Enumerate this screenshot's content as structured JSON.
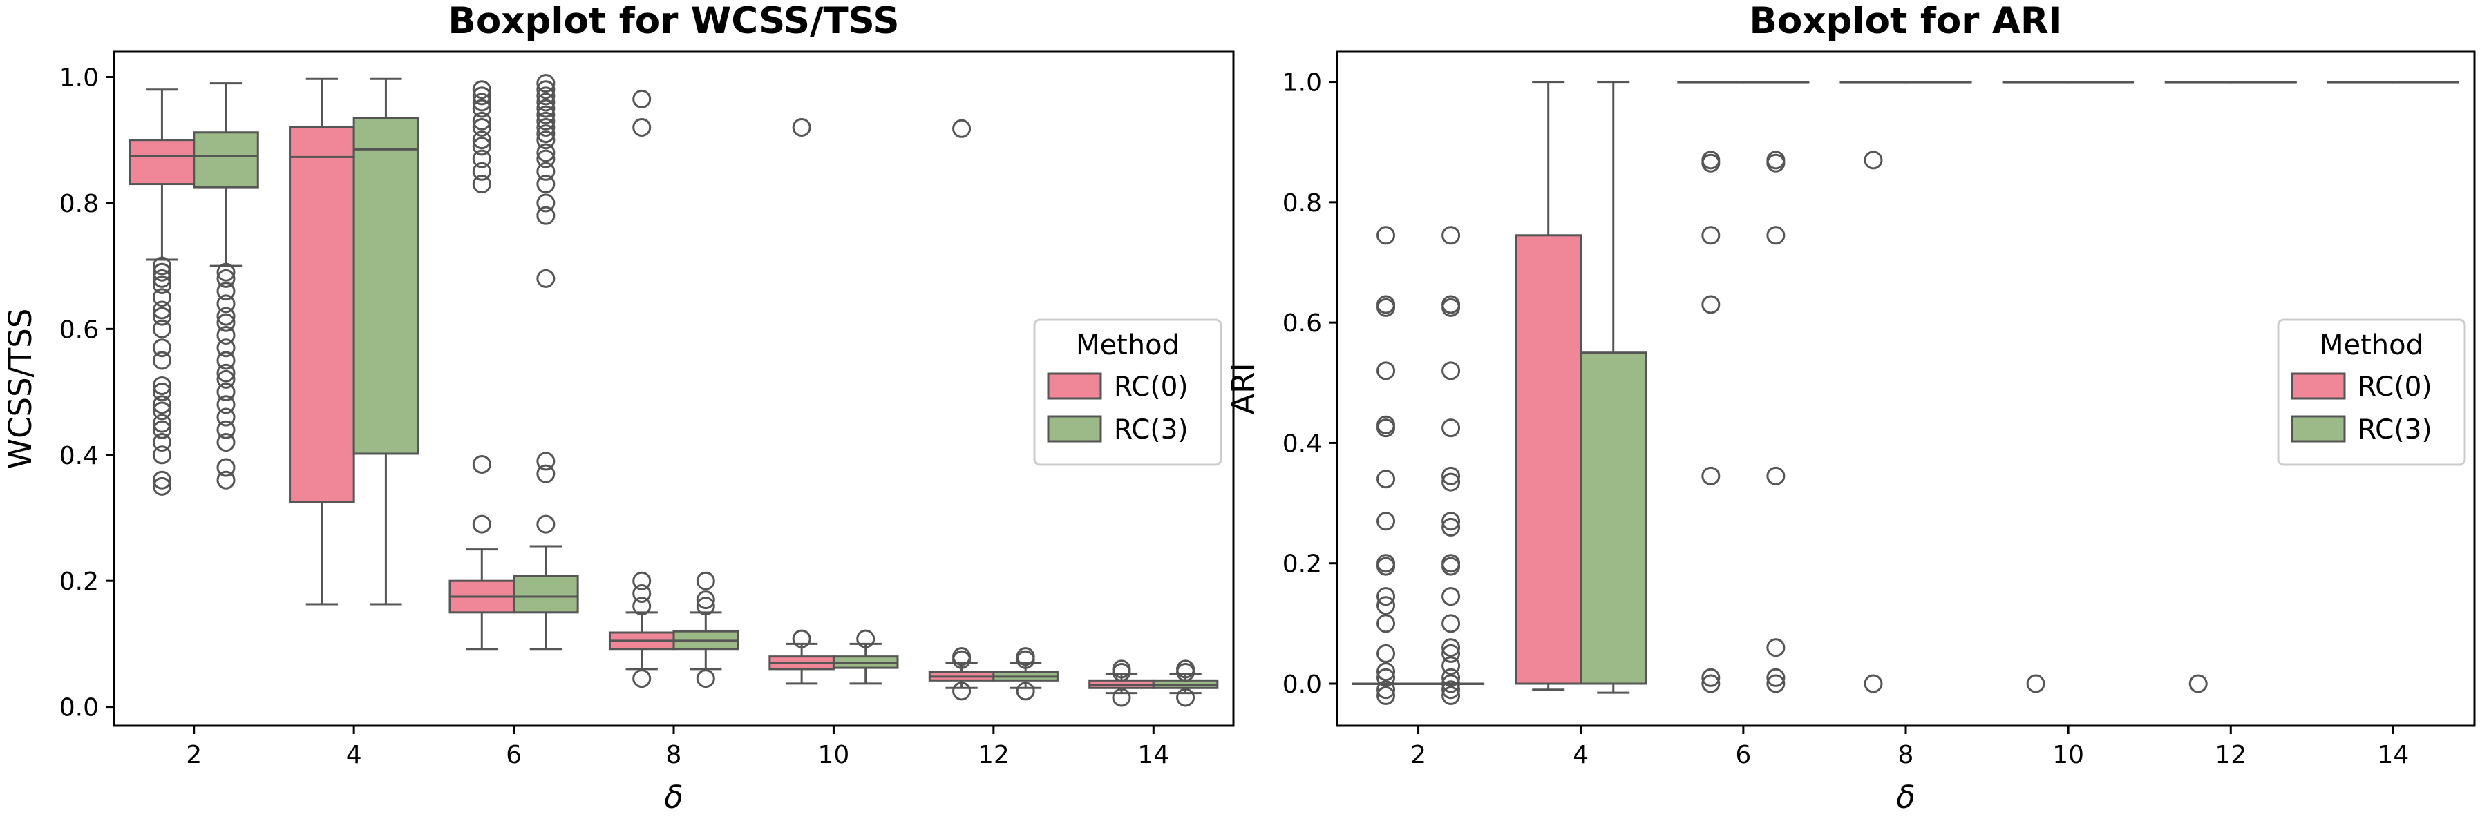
{
  "chart_data": [
    {
      "type": "boxplot",
      "title": "Boxplot for WCSS/TSS",
      "xlabel": "δ",
      "ylabel": "WCSS/TSS",
      "ylim": [
        -0.03,
        1.04
      ],
      "yticks": [
        0.0,
        0.2,
        0.4,
        0.6,
        0.8,
        1.0
      ],
      "ytick_labels": [
        "0.0",
        "0.2",
        "0.4",
        "0.6",
        "0.8",
        "1.0"
      ],
      "categories": [
        "2",
        "4",
        "6",
        "8",
        "10",
        "12",
        "14"
      ],
      "grid": false,
      "legend": {
        "title": "Method",
        "position": "center-right",
        "entries": [
          {
            "label": "RC(0)",
            "color": "#ef8798"
          },
          {
            "label": "RC(3)",
            "color": "#9cba87"
          }
        ]
      },
      "series": [
        {
          "name": "RC(0)",
          "color": "#ef8798",
          "boxes": [
            {
              "q1": 0.83,
              "median": 0.875,
              "q3": 0.9,
              "whislo": 0.71,
              "whishi": 0.98,
              "outliers": [
                0.35,
                0.36,
                0.4,
                0.42,
                0.44,
                0.45,
                0.47,
                0.48,
                0.5,
                0.51,
                0.55,
                0.57,
                0.6,
                0.62,
                0.63,
                0.65,
                0.67,
                0.68,
                0.69,
                0.7
              ]
            },
            {
              "q1": 0.325,
              "median": 0.873,
              "q3": 0.92,
              "whislo": 0.163,
              "whishi": 0.997,
              "outliers": []
            },
            {
              "q1": 0.15,
              "median": 0.175,
              "q3": 0.2,
              "whislo": 0.092,
              "whishi": 0.25,
              "outliers": [
                0.29,
                0.385,
                0.83,
                0.85,
                0.87,
                0.89,
                0.9,
                0.92,
                0.93,
                0.95,
                0.96,
                0.97,
                0.98
              ]
            },
            {
              "q1": 0.092,
              "median": 0.105,
              "q3": 0.118,
              "whislo": 0.06,
              "whishi": 0.15,
              "outliers": [
                0.045,
                0.16,
                0.18,
                0.2,
                0.92,
                0.965
              ]
            },
            {
              "q1": 0.06,
              "median": 0.07,
              "q3": 0.08,
              "whislo": 0.037,
              "whishi": 0.1,
              "outliers": [
                0.108,
                0.92
              ]
            },
            {
              "q1": 0.042,
              "median": 0.048,
              "q3": 0.056,
              "whislo": 0.03,
              "whishi": 0.07,
              "outliers": [
                0.025,
                0.075,
                0.08,
                0.918
              ]
            },
            {
              "q1": 0.03,
              "median": 0.035,
              "q3": 0.042,
              "whislo": 0.022,
              "whishi": 0.052,
              "outliers": [
                0.015,
                0.055,
                0.06
              ]
            }
          ]
        },
        {
          "name": "RC(3)",
          "color": "#9cba87",
          "boxes": [
            {
              "q1": 0.825,
              "median": 0.875,
              "q3": 0.912,
              "whislo": 0.7,
              "whishi": 0.99,
              "outliers": [
                0.36,
                0.38,
                0.42,
                0.44,
                0.46,
                0.48,
                0.5,
                0.52,
                0.53,
                0.55,
                0.57,
                0.59,
                0.61,
                0.62,
                0.64,
                0.66,
                0.68,
                0.69
              ]
            },
            {
              "q1": 0.402,
              "median": 0.885,
              "q3": 0.935,
              "whislo": 0.163,
              "whishi": 0.997,
              "outliers": []
            },
            {
              "q1": 0.15,
              "median": 0.175,
              "q3": 0.208,
              "whislo": 0.092,
              "whishi": 0.255,
              "outliers": [
                0.29,
                0.37,
                0.39,
                0.68,
                0.78,
                0.8,
                0.83,
                0.85,
                0.87,
                0.88,
                0.9,
                0.91,
                0.92,
                0.93,
                0.94,
                0.95,
                0.96,
                0.97,
                0.98,
                0.99
              ]
            },
            {
              "q1": 0.092,
              "median": 0.105,
              "q3": 0.12,
              "whislo": 0.06,
              "whishi": 0.15,
              "outliers": [
                0.045,
                0.16,
                0.17,
                0.2
              ]
            },
            {
              "q1": 0.062,
              "median": 0.07,
              "q3": 0.08,
              "whislo": 0.037,
              "whishi": 0.1,
              "outliers": [
                0.108
              ]
            },
            {
              "q1": 0.042,
              "median": 0.048,
              "q3": 0.056,
              "whislo": 0.03,
              "whishi": 0.07,
              "outliers": [
                0.025,
                0.075,
                0.08
              ]
            },
            {
              "q1": 0.03,
              "median": 0.035,
              "q3": 0.042,
              "whislo": 0.022,
              "whishi": 0.052,
              "outliers": [
                0.015,
                0.055,
                0.06
              ]
            }
          ]
        }
      ]
    },
    {
      "type": "boxplot",
      "title": "Boxplot for ARI",
      "xlabel": "δ",
      "ylabel": "ARI",
      "ylim": [
        -0.07,
        1.05
      ],
      "yticks": [
        0.0,
        0.2,
        0.4,
        0.6,
        0.8,
        1.0
      ],
      "ytick_labels": [
        "0.0",
        "0.2",
        "0.4",
        "0.6",
        "0.8",
        "1.0"
      ],
      "categories": [
        "2",
        "4",
        "6",
        "8",
        "10",
        "12",
        "14"
      ],
      "grid": false,
      "legend": {
        "title": "Method",
        "position": "center-right",
        "entries": [
          {
            "label": "RC(0)",
            "color": "#ef8798"
          },
          {
            "label": "RC(3)",
            "color": "#9cba87"
          }
        ]
      },
      "series": [
        {
          "name": "RC(0)",
          "color": "#ef8798",
          "boxes": [
            {
              "q1": 0.0,
              "median": 0.0,
              "q3": 0.0,
              "whislo": 0.0,
              "whishi": 0.0,
              "outliers": [
                -0.02,
                -0.01,
                0.01,
                0.02,
                0.05,
                0.1,
                0.13,
                0.145,
                0.195,
                0.2,
                0.27,
                0.34,
                0.425,
                0.43,
                0.52,
                0.625,
                0.63,
                0.745
              ]
            },
            {
              "q1": 0.0,
              "median": 0.0,
              "q3": 0.745,
              "whislo": -0.01,
              "whishi": 1.0,
              "outliers": []
            },
            {
              "q1": 1.0,
              "median": 1.0,
              "q3": 1.0,
              "whislo": 1.0,
              "whishi": 1.0,
              "outliers": [
                0.0,
                0.01,
                0.345,
                0.63,
                0.745,
                0.865,
                0.87
              ]
            },
            {
              "q1": 1.0,
              "median": 1.0,
              "q3": 1.0,
              "whislo": 1.0,
              "whishi": 1.0,
              "outliers": [
                0.0,
                0.87
              ]
            },
            {
              "q1": 1.0,
              "median": 1.0,
              "q3": 1.0,
              "whislo": 1.0,
              "whishi": 1.0,
              "outliers": [
                0.0
              ]
            },
            {
              "q1": 1.0,
              "median": 1.0,
              "q3": 1.0,
              "whislo": 1.0,
              "whishi": 1.0,
              "outliers": [
                0.0
              ]
            },
            {
              "q1": 1.0,
              "median": 1.0,
              "q3": 1.0,
              "whislo": 1.0,
              "whishi": 1.0,
              "outliers": []
            }
          ]
        },
        {
          "name": "RC(3)",
          "color": "#9cba87",
          "boxes": [
            {
              "q1": 0.0,
              "median": 0.0,
              "q3": 0.0,
              "whislo": 0.0,
              "whishi": 0.0,
              "outliers": [
                -0.02,
                -0.01,
                0.0,
                0.01,
                0.03,
                0.05,
                0.06,
                0.1,
                0.145,
                0.195,
                0.2,
                0.26,
                0.27,
                0.335,
                0.345,
                0.425,
                0.52,
                0.625,
                0.63,
                0.745
              ]
            },
            {
              "q1": 0.0,
              "median": 0.0,
              "q3": 0.55,
              "whislo": -0.015,
              "whishi": 1.0,
              "outliers": []
            },
            {
              "q1": 1.0,
              "median": 1.0,
              "q3": 1.0,
              "whislo": 1.0,
              "whishi": 1.0,
              "outliers": [
                0.0,
                0.01,
                0.06,
                0.345,
                0.745,
                0.865,
                0.87
              ]
            },
            {
              "q1": 1.0,
              "median": 1.0,
              "q3": 1.0,
              "whislo": 1.0,
              "whishi": 1.0,
              "outliers": []
            },
            {
              "q1": 1.0,
              "median": 1.0,
              "q3": 1.0,
              "whislo": 1.0,
              "whishi": 1.0,
              "outliers": []
            },
            {
              "q1": 1.0,
              "median": 1.0,
              "q3": 1.0,
              "whislo": 1.0,
              "whishi": 1.0,
              "outliers": []
            },
            {
              "q1": 1.0,
              "median": 1.0,
              "q3": 1.0,
              "whislo": 1.0,
              "whishi": 1.0,
              "outliers": []
            }
          ]
        }
      ]
    }
  ]
}
